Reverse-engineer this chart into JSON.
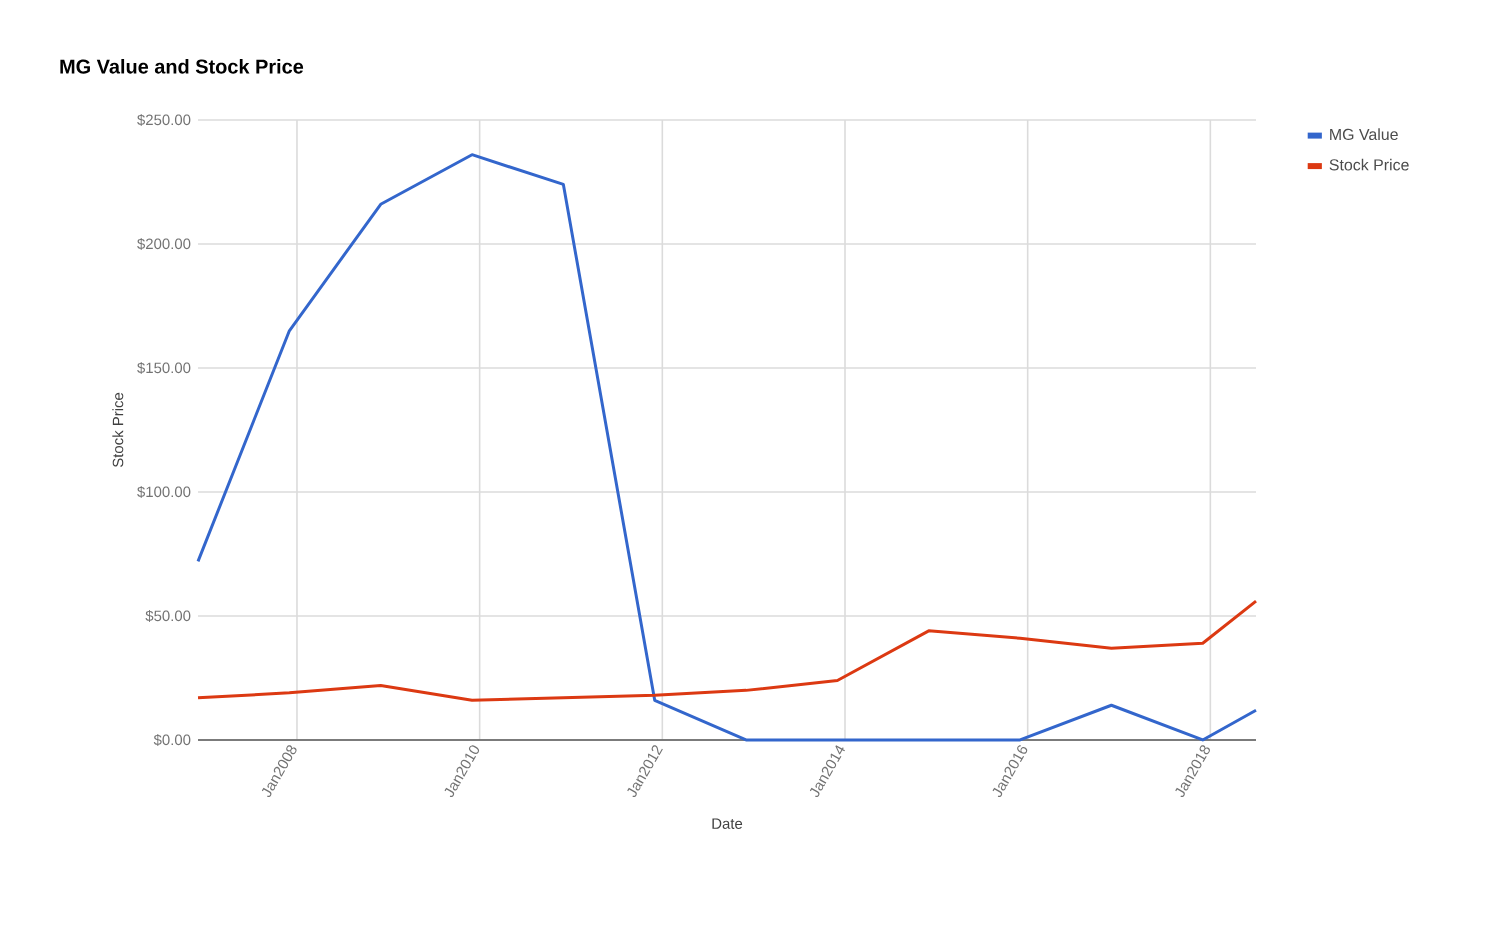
{
  "chart_data": {
    "type": "line",
    "title": "MG Value and Stock Price",
    "xlabel": "Date",
    "ylabel": "Stock Price",
    "x": [
      "2006-12",
      "2007-12",
      "2008-12",
      "2009-12",
      "2010-12",
      "2011-12",
      "2012-12",
      "2013-12",
      "2014-12",
      "2015-12",
      "2016-12",
      "2017-12",
      "2018-07"
    ],
    "series": [
      {
        "name": "MG Value",
        "color": "#3366cc",
        "values": [
          72,
          165,
          216,
          236,
          224,
          16,
          0,
          0,
          0,
          0,
          14,
          0,
          12
        ]
      },
      {
        "name": "Stock Price",
        "color": "#dc3912",
        "values": [
          17,
          19,
          22,
          16,
          17,
          18,
          20,
          24,
          44,
          41,
          37,
          39,
          56
        ]
      }
    ],
    "xlim": [
      "2006-12",
      "2018-07"
    ],
    "xticks": [
      {
        "value": "2008-01",
        "label": "Jan2008"
      },
      {
        "value": "2010-01",
        "label": "Jan2010"
      },
      {
        "value": "2012-01",
        "label": "Jan2012"
      },
      {
        "value": "2014-01",
        "label": "Jan2014"
      },
      {
        "value": "2016-01",
        "label": "Jan2016"
      },
      {
        "value": "2018-01",
        "label": "Jan2018"
      }
    ],
    "ylim": [
      0,
      250
    ],
    "yticks": [
      {
        "value": 0,
        "label": "$0.00"
      },
      {
        "value": 50,
        "label": "$50.00"
      },
      {
        "value": 100,
        "label": "$100.00"
      },
      {
        "value": 150,
        "label": "$150.00"
      },
      {
        "value": 200,
        "label": "$200.00"
      },
      {
        "value": 250,
        "label": "$250.00"
      }
    ],
    "grid": true,
    "legend": "right",
    "line_style": "solid"
  }
}
